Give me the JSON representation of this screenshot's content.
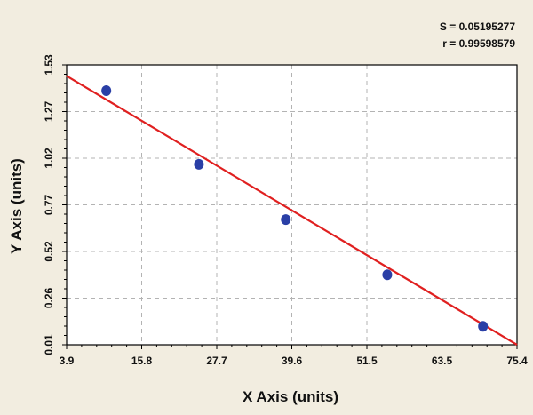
{
  "chart_data": {
    "type": "scatter",
    "title": "",
    "xlabel": "X Axis (units)",
    "ylabel": "Y Axis (units)",
    "xlim": [
      3.9,
      75.4
    ],
    "ylim": [
      0.01,
      1.53
    ],
    "x_ticks": [
      "3.9",
      "15.8",
      "27.7",
      "39.6",
      "51.5",
      "63.5",
      "75.4"
    ],
    "y_ticks": [
      "0.01",
      "0.26",
      "0.52",
      "0.77",
      "1.02",
      "1.27",
      "1.53"
    ],
    "grid": true,
    "stats": {
      "s_label": "S = 0.05195277",
      "r_label": "r = 0.99598579"
    },
    "series": [
      {
        "marker_color": "#2a3fa6",
        "points": [
          {
            "x": 10.2,
            "y": 1.39
          },
          {
            "x": 24.9,
            "y": 0.99
          },
          {
            "x": 38.7,
            "y": 0.69
          },
          {
            "x": 54.8,
            "y": 0.39
          },
          {
            "x": 70.0,
            "y": 0.11
          }
        ]
      }
    ],
    "fit_line": {
      "color": "#e02020",
      "x": [
        3.9,
        75.4
      ],
      "y": [
        1.47,
        0.01
      ]
    },
    "colors": {
      "background": "#f2ede0",
      "plot_area": "#ffffff",
      "grid": "#b3b3b3"
    }
  }
}
